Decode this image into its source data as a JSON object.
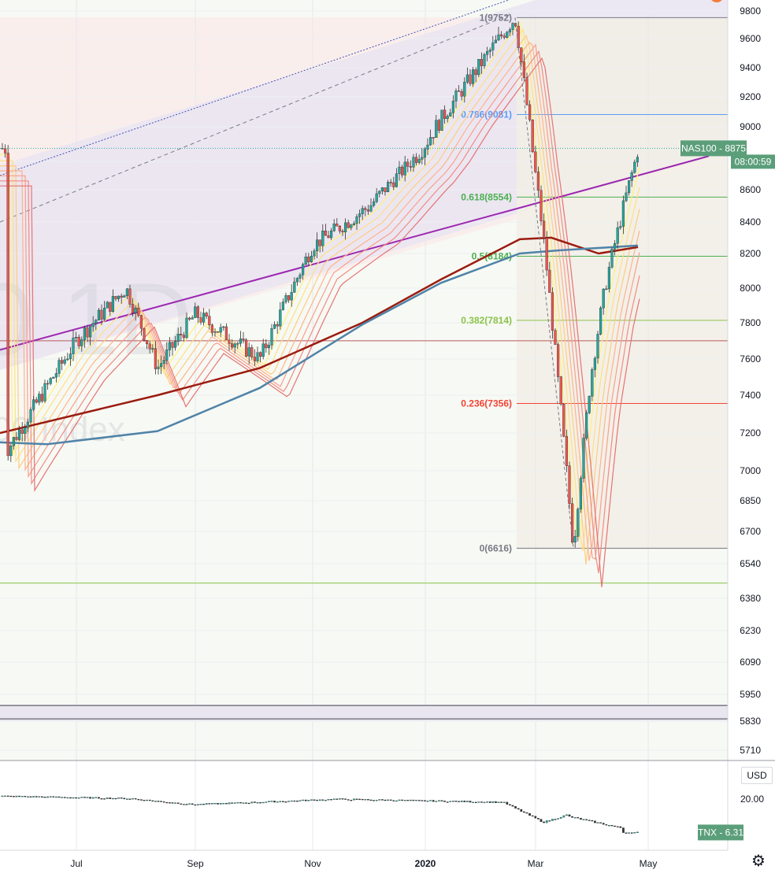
{
  "chart_data": {
    "type": "candlestick",
    "title": "",
    "watermark": [
      "0 1D",
      "00 Index"
    ],
    "price_axis": {
      "scale": "log",
      "ylim": [
        5650,
        9850
      ],
      "ticks": [
        9800,
        9600,
        9400,
        9200,
        9000,
        8800,
        8600,
        8400,
        8200,
        8000,
        7800,
        7600,
        7400,
        7200,
        7000,
        6850,
        6700,
        6540,
        6380,
        6230,
        6090,
        5950,
        5830,
        5710
      ]
    },
    "time_axis": {
      "ticks": [
        "Jul",
        "Sep",
        "Nov",
        "2020",
        "Mar",
        "May"
      ],
      "bold_tick": "2020"
    },
    "main_series": {
      "name": "NAS100",
      "last_value": 8875,
      "label": "NAS100 - 8875",
      "countdown": "08:00:59",
      "color_up": "#26a69a",
      "color_down": "#ef5350",
      "key_points": [
        {
          "x": "Jun",
          "close": 7100
        },
        {
          "x": "Jul",
          "close": 7700
        },
        {
          "x": "late Jul",
          "close": 8000
        },
        {
          "x": "Aug",
          "close": 7550
        },
        {
          "x": "Sep",
          "close": 7850
        },
        {
          "x": "Oct",
          "close": 7600
        },
        {
          "x": "Nov",
          "close": 8250
        },
        {
          "x": "Dec",
          "close": 8500
        },
        {
          "x": "2020",
          "close": 8900
        },
        {
          "x": "Feb",
          "close": 9752
        },
        {
          "x": "early Mar",
          "close": 8300
        },
        {
          "x": "mid Mar",
          "close": 6616
        },
        {
          "x": "late Mar",
          "close": 7500
        },
        {
          "x": "Apr",
          "close": 8000
        },
        {
          "x": "late Apr",
          "close": 8875
        }
      ]
    },
    "fibonacci": [
      {
        "label": "1(9752)",
        "value": 9752,
        "color": "#787b86"
      },
      {
        "label": "0.786(9081)",
        "value": 9081,
        "color": "#5b9cf6"
      },
      {
        "label": "0.618(8554)",
        "value": 8554,
        "color": "#4caf50"
      },
      {
        "label": "0.5(8184)",
        "value": 8184,
        "color": "#4caf50"
      },
      {
        "label": "0.382(7814)",
        "value": 7814,
        "color": "#8bc34a"
      },
      {
        "label": "0.236(7356)",
        "value": 7356,
        "color": "#f44336"
      },
      {
        "label": "0(6616)",
        "value": 6616,
        "color": "#787b86"
      }
    ],
    "horizontal_levels": [
      7700,
      6450,
      5900,
      5840
    ],
    "moving_averages": [
      {
        "color": "#9b1c0f",
        "points": [
          [
            0,
            7200
          ],
          [
            200,
            7400
          ],
          [
            330,
            7550
          ],
          [
            460,
            7800
          ],
          [
            560,
            8050
          ],
          [
            660,
            8290
          ],
          [
            700,
            8300
          ],
          [
            760,
            8200
          ],
          [
            810,
            8240
          ]
        ]
      },
      {
        "color": "#4f83a8",
        "points": [
          [
            0,
            7150
          ],
          [
            60,
            7140
          ],
          [
            200,
            7210
          ],
          [
            330,
            7440
          ],
          [
            460,
            7790
          ],
          [
            560,
            8030
          ],
          [
            660,
            8200
          ],
          [
            710,
            8220
          ],
          [
            810,
            8250
          ]
        ]
      }
    ],
    "trendlines": [
      {
        "style": "solid",
        "color": "#9c27b0",
        "from": [
          0,
          7650
        ],
        "to": [
          900,
          8830
        ]
      },
      {
        "style": "dotted",
        "color": "#3f51b5",
        "from": [
          0,
          8700
        ],
        "to": [
          680,
          9950
        ]
      },
      {
        "style": "dashed",
        "color": "#787b86",
        "from": [
          0,
          8400
        ],
        "to": [
          650,
          9780
        ]
      }
    ],
    "sub_pane": {
      "name": "TNX",
      "label": "TNX - 6.31",
      "currency": "USD",
      "ticks": [
        "20.00"
      ],
      "last_value": 6.31
    }
  }
}
